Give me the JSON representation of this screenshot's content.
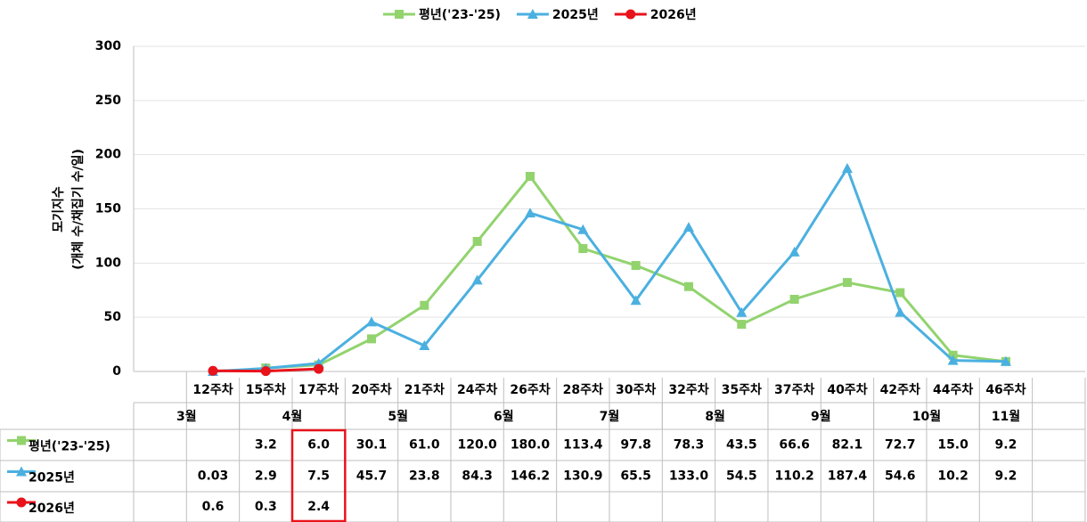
{
  "chart_data": {
    "type": "line",
    "y_label": [
      "모기지수",
      "(개체 수/채집기 수/일)"
    ],
    "categories": [
      "12주차",
      "15주차",
      "17주차",
      "20주차",
      "21주차",
      "24주차",
      "26주차",
      "28주차",
      "30주차",
      "32주차",
      "35주차",
      "37주차",
      "40주차",
      "42주차",
      "44주차",
      "46주차"
    ],
    "months": [
      "3월",
      "4월",
      "5월",
      "6월",
      "7월",
      "8월",
      "9월",
      "10월",
      "11월"
    ],
    "series": [
      {
        "name": "평년('23-'25)",
        "color": "#92d36e",
        "marker": "square",
        "values": [
          null,
          3.2,
          6.0,
          30.1,
          61.0,
          120.0,
          180.0,
          113.4,
          97.8,
          78.3,
          43.5,
          66.6,
          82.1,
          72.7,
          15.0,
          9.2
        ],
        "value_labels": [
          null,
          "3.2",
          "6.0",
          "30.1",
          "61.0",
          "120.0",
          "180.0",
          "113.4",
          "97.8",
          "78.3",
          "43.5",
          "66.6",
          "82.1",
          "72.7",
          "15.0",
          "9.2"
        ]
      },
      {
        "name": "2025년",
        "color": "#4bb0e0",
        "marker": "triangle",
        "values": [
          0.03,
          2.9,
          7.5,
          45.7,
          23.8,
          84.3,
          146.2,
          130.9,
          65.5,
          133.0,
          54.5,
          110.2,
          187.4,
          54.6,
          10.2,
          9.2
        ],
        "value_labels": [
          "0.03",
          "2.9",
          "7.5",
          "45.7",
          "23.8",
          "84.3",
          "146.2",
          "130.9",
          "65.5",
          "133.0",
          "54.5",
          "110.2",
          "187.4",
          "54.6",
          "10.2",
          "9.2"
        ]
      },
      {
        "name": "2026년",
        "color": "#e8131b",
        "marker": "circle",
        "values": [
          0.6,
          0.3,
          2.4,
          null,
          null,
          null,
          null,
          null,
          null,
          null,
          null,
          null,
          null,
          null,
          null,
          null
        ],
        "value_labels": [
          "0.6",
          "0.3",
          "2.4",
          null,
          null,
          null,
          null,
          null,
          null,
          null,
          null,
          null,
          null,
          null,
          null,
          null
        ]
      }
    ],
    "ylim": [
      0,
      300
    ],
    "yticks": [
      0,
      50,
      100,
      150,
      200,
      250,
      300
    ],
    "grid": true
  }
}
